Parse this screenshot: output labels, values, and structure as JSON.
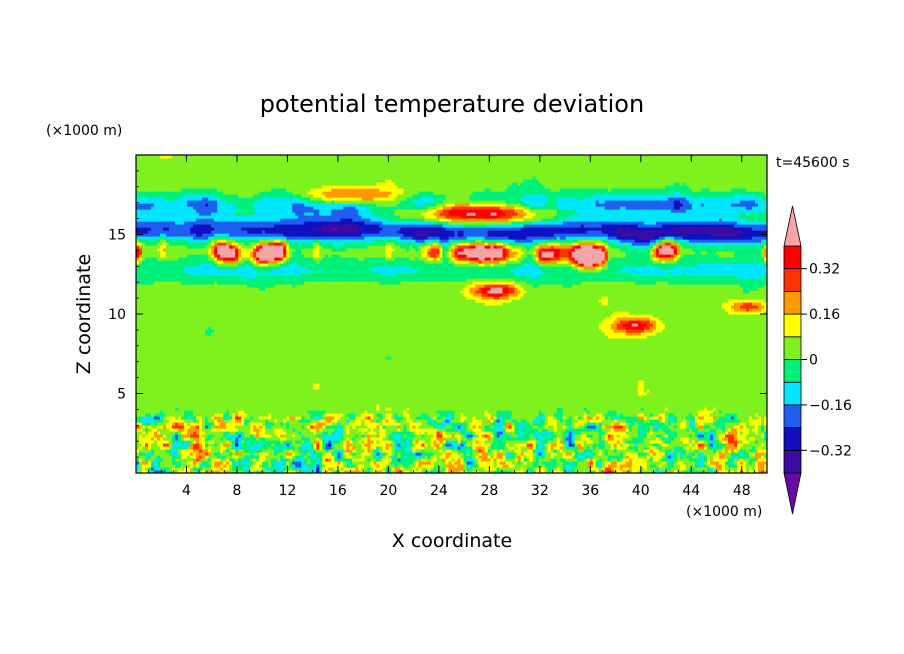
{
  "chart_data": {
    "type": "heatmap",
    "title": "potential temperature deviation",
    "xlabel": "X coordinate",
    "ylabel": "Z coordinate",
    "x_unit": "(×1000 m)",
    "y_unit": "(×1000 m)",
    "time_label": "t=45600 s",
    "xlim": [
      0,
      50
    ],
    "ylim": [
      0,
      20
    ],
    "x_ticks": [
      4,
      8,
      12,
      16,
      20,
      24,
      28,
      32,
      36,
      40,
      44,
      48
    ],
    "y_ticks": [
      5,
      10,
      15
    ],
    "colorbar": {
      "levels": [
        -0.4,
        -0.32,
        -0.24,
        -0.16,
        -0.08,
        0,
        0.08,
        0.16,
        0.24,
        0.32,
        0.4
      ],
      "tick_labels": [
        "0.32",
        "0.16",
        "0",
        "−0.16",
        "−0.32"
      ],
      "tick_values": [
        0.32,
        0.16,
        0,
        -0.16,
        -0.32
      ],
      "colors": [
        "#6a0aa8",
        "#3a0ca0",
        "#1010c0",
        "#1e5ef0",
        "#00e6ff",
        "#00f07a",
        "#7ff21e",
        "#ffff00",
        "#ff9900",
        "#ff3300",
        "#ff0000",
        "#f5a5a5"
      ],
      "extend": "both"
    },
    "bands": [
      {
        "z_range": [
          0,
          3.5
        ],
        "description": "turbulent boundary layer, mixed values"
      },
      {
        "z_range": [
          3.5,
          12
        ],
        "dominant_value": 0.04
      },
      {
        "z_range": [
          12,
          13.5
        ],
        "dominant_value": -0.1
      },
      {
        "z_range": [
          13.5,
          16.5
        ],
        "mixed": "strong negative and positive structures"
      },
      {
        "z_range": [
          16.5,
          20
        ],
        "dominant_value": 0.04
      }
    ]
  }
}
